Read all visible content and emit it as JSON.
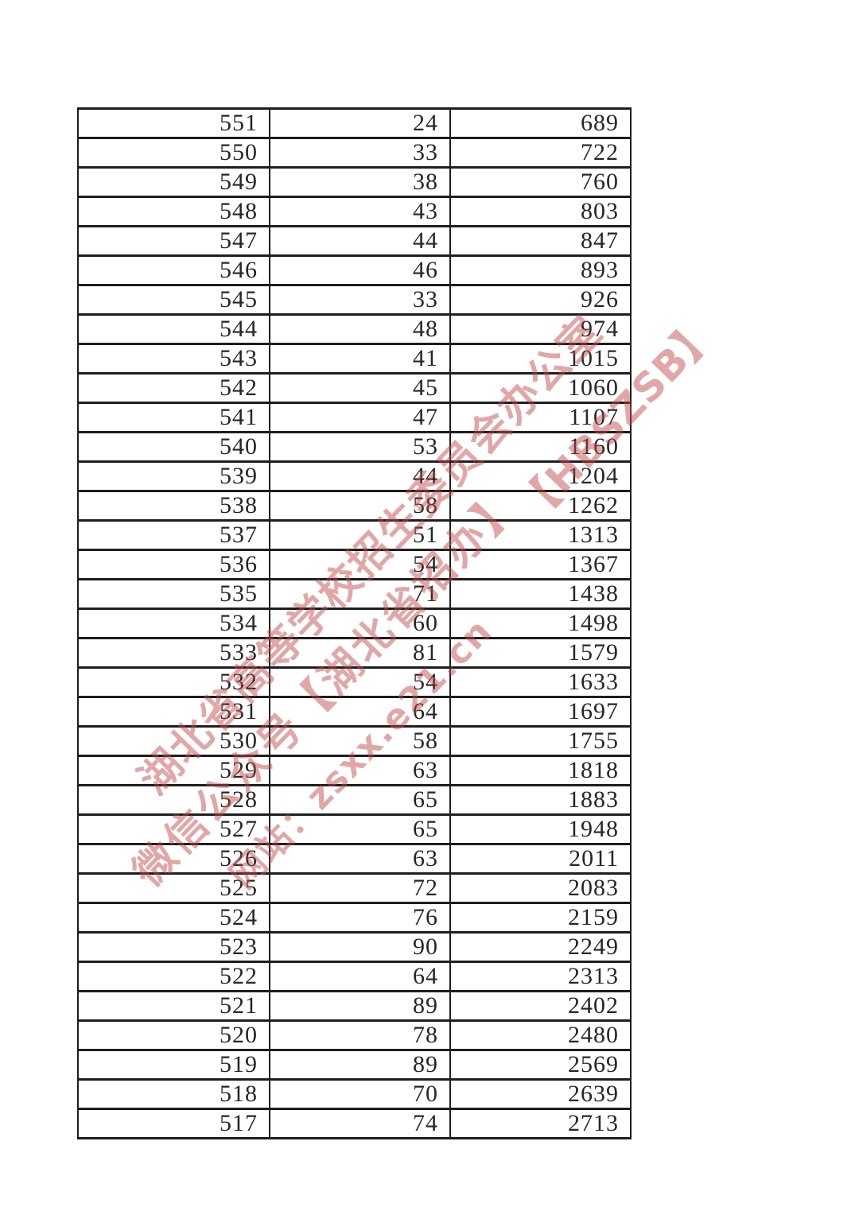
{
  "document": {
    "type": "score-distribution-table-page",
    "background_color": "#ffffff",
    "text_color": "#262626",
    "border_color": "#1e1e1e"
  },
  "table": {
    "column_keys": [
      "score",
      "count",
      "cumulative"
    ],
    "rows": [
      [
        551,
        24,
        689
      ],
      [
        550,
        33,
        722
      ],
      [
        549,
        38,
        760
      ],
      [
        548,
        43,
        803
      ],
      [
        547,
        44,
        847
      ],
      [
        546,
        46,
        893
      ],
      [
        545,
        33,
        926
      ],
      [
        544,
        48,
        974
      ],
      [
        543,
        41,
        1015
      ],
      [
        542,
        45,
        1060
      ],
      [
        541,
        47,
        1107
      ],
      [
        540,
        53,
        1160
      ],
      [
        539,
        44,
        1204
      ],
      [
        538,
        58,
        1262
      ],
      [
        537,
        51,
        1313
      ],
      [
        536,
        54,
        1367
      ],
      [
        535,
        71,
        1438
      ],
      [
        534,
        60,
        1498
      ],
      [
        533,
        81,
        1579
      ],
      [
        532,
        54,
        1633
      ],
      [
        531,
        64,
        1697
      ],
      [
        530,
        58,
        1755
      ],
      [
        529,
        63,
        1818
      ],
      [
        528,
        65,
        1883
      ],
      [
        527,
        65,
        1948
      ],
      [
        526,
        63,
        2011
      ],
      [
        525,
        72,
        2083
      ],
      [
        524,
        76,
        2159
      ],
      [
        523,
        90,
        2249
      ],
      [
        522,
        64,
        2313
      ],
      [
        521,
        89,
        2402
      ],
      [
        520,
        78,
        2480
      ],
      [
        519,
        89,
        2569
      ],
      [
        518,
        70,
        2639
      ],
      [
        517,
        74,
        2713
      ]
    ]
  },
  "watermark": {
    "color": "#c04848",
    "lines": [
      {
        "text": "湖北省高等学校招生委员会办公室"
      },
      {
        "text": "微信公众号【湖北省招办】"
      },
      {
        "text": "网站：zsxx.e21.cn"
      },
      {
        "text": "【HBSZSB】"
      }
    ]
  }
}
